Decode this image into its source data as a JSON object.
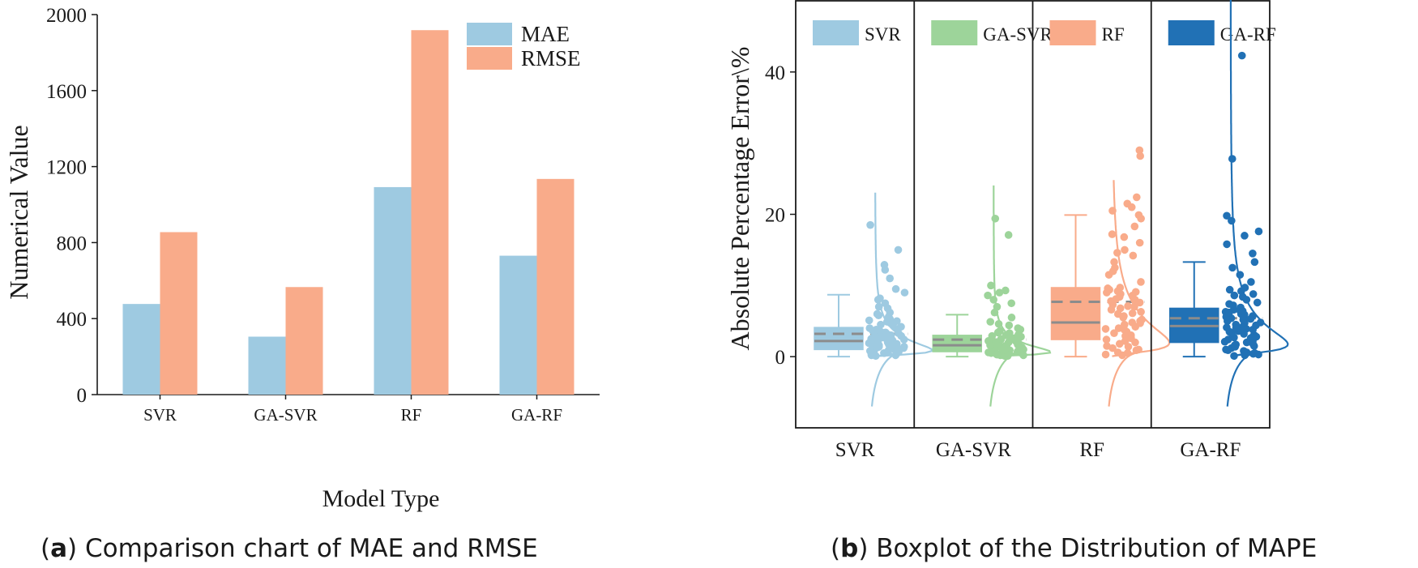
{
  "colors": {
    "mae": "#9ecae1",
    "rmse": "#f9ab8a",
    "svr": "#9ecae1",
    "ga_svr": "#9dd49a",
    "rf": "#f9ab8a",
    "ga_rf": "#2171b5",
    "axis": "#1a1a1a",
    "median": "#8c8c8c"
  },
  "chart_data": [
    {
      "id": "a",
      "type": "bar",
      "caption": {
        "label": "a",
        "text": "Comparison chart of MAE and RMSE"
      },
      "xlabel": "Model Type",
      "ylabel": "Numerical Value",
      "ylim": [
        0,
        2000
      ],
      "yticks": [
        0,
        400,
        800,
        1200,
        1600,
        2000
      ],
      "grid": false,
      "legend_position": "top-right",
      "categories": [
        "SVR",
        "GA-SVR",
        "RF",
        "GA-RF"
      ],
      "series": [
        {
          "name": "MAE",
          "values": [
            477,
            305,
            1092,
            731
          ]
        },
        {
          "name": "RMSE",
          "values": [
            855,
            566,
            1918,
            1135
          ]
        }
      ]
    },
    {
      "id": "b",
      "type": "box",
      "caption": {
        "label": "b",
        "text": "Boxplot of the Distribution of MAPE"
      },
      "ylabel": "Absolute Percentage Error\\%",
      "ylim": [
        -10,
        50
      ],
      "yticks": [
        0,
        20,
        40
      ],
      "grid": false,
      "legend_position": "top of each panel",
      "categories": [
        "SVR",
        "GA-SVR",
        "RF",
        "GA-RF"
      ],
      "boxes": [
        {
          "name": "SVR",
          "whisker_low": 0,
          "q1": 1.0,
          "median": 2.2,
          "q3": 4.1,
          "whisker_high": 8.7,
          "mean": 3.2,
          "outliers": [
            9.5,
            11.0,
            12.2,
            12.9,
            15.0,
            18.5
          ],
          "points": [
            0.2,
            0.4,
            0.5,
            0.7,
            0.9,
            1.1,
            1.2,
            1.4,
            1.6,
            1.8,
            1.9,
            2.1,
            2.3,
            2.4,
            2.6,
            2.8,
            3.0,
            3.2,
            3.4,
            3.6,
            3.9,
            4.2,
            4.5,
            4.9,
            5.3,
            5.8,
            6.2,
            6.8,
            7.5,
            8.2,
            9.0,
            9.5,
            11.0,
            12.2,
            12.9,
            15.0,
            18.5,
            0.3,
            0.6,
            1.0,
            1.5,
            2.0,
            2.5,
            3.1,
            3.7,
            4.4,
            5.1,
            6.0,
            0.8,
            1.3,
            1.7,
            2.2,
            2.9,
            3.5,
            4.0,
            0.1,
            0.5,
            1.0,
            1.4,
            2.0,
            2.7,
            3.3,
            4.7,
            5.6,
            0.2,
            0.9,
            1.6,
            2.4,
            3.0,
            0.4,
            1.2,
            2.6,
            3.8,
            5.0,
            7.0,
            8.0
          ]
        },
        {
          "name": "GA-SVR",
          "whisker_low": 0,
          "q1": 0.7,
          "median": 1.6,
          "q3": 3.0,
          "whisker_high": 5.9,
          "mean": 2.4,
          "outliers": [
            7.5,
            8.6,
            9.3,
            10.0,
            17.1,
            19.4
          ],
          "points": [
            0.1,
            0.2,
            0.3,
            0.4,
            0.5,
            0.6,
            0.7,
            0.8,
            0.9,
            1.0,
            1.1,
            1.2,
            1.3,
            1.4,
            1.5,
            1.6,
            1.7,
            1.8,
            1.9,
            2.0,
            2.2,
            2.4,
            2.6,
            2.8,
            3.0,
            3.3,
            3.6,
            4.0,
            4.4,
            4.9,
            5.5,
            6.2,
            7.0,
            7.5,
            8.6,
            9.3,
            10.0,
            17.1,
            19.4,
            0.2,
            0.5,
            0.8,
            1.1,
            1.4,
            1.7,
            2.1,
            2.5,
            3.1,
            3.8,
            0.3,
            0.6,
            0.9,
            1.3,
            1.8,
            2.3,
            2.9,
            0.1,
            0.4,
            1.0,
            1.5,
            2.0,
            2.7,
            3.4,
            4.6,
            0.7,
            1.2,
            1.6,
            2.2,
            9.0,
            8.0
          ]
        },
        {
          "name": "RF",
          "whisker_low": 0,
          "q1": 2.4,
          "median": 4.8,
          "q3": 9.7,
          "whisker_high": 19.9,
          "mean": 7.7,
          "outliers": [],
          "points": [
            0.2,
            0.6,
            1.0,
            1.5,
            2.0,
            2.4,
            2.9,
            3.3,
            3.8,
            4.2,
            4.8,
            5.2,
            5.7,
            6.1,
            6.6,
            7.1,
            7.6,
            8.1,
            8.6,
            9.0,
            9.4,
            9.7,
            10.5,
            11.5,
            12.5,
            13.3,
            14.2,
            15.0,
            16.0,
            17.2,
            18.3,
            19.4,
            20.5,
            21.5,
            22.4,
            28.2,
            29.0,
            0.5,
            1.2,
            2.2,
            3.0,
            4.0,
            5.0,
            6.0,
            7.0,
            8.0,
            9.2,
            0.3,
            1.8,
            3.5,
            5.5,
            7.3,
            8.8,
            2.7,
            4.5,
            6.3,
            8.4,
            9.6,
            1.4,
            3.9,
            6.8,
            9.1,
            12.0,
            14.6,
            16.8,
            19.9,
            21.0,
            0.9,
            2.6,
            4.7,
            7.8
          ]
        },
        {
          "name": "GA-RF",
          "whisker_low": 0,
          "q1": 2.0,
          "median": 4.3,
          "q3": 6.8,
          "whisker_high": 13.3,
          "mean": 5.4,
          "outliers": [
            14.5,
            15.8,
            17.0,
            17.6,
            19.1,
            19.8,
            27.8,
            42.3
          ],
          "points": [
            0.1,
            0.3,
            0.6,
            0.9,
            1.2,
            1.5,
            1.8,
            2.1,
            2.4,
            2.7,
            3.0,
            3.3,
            3.6,
            3.9,
            4.2,
            4.5,
            4.8,
            5.1,
            5.4,
            5.7,
            6.0,
            6.3,
            6.6,
            6.9,
            7.2,
            7.6,
            8.0,
            8.4,
            8.8,
            9.2,
            9.7,
            10.5,
            11.5,
            12.5,
            13.3,
            14.5,
            15.8,
            17.0,
            17.6,
            19.1,
            19.8,
            27.8,
            42.3,
            0.2,
            0.8,
            1.4,
            2.0,
            2.6,
            3.2,
            3.8,
            4.4,
            5.0,
            5.6,
            6.2,
            0.4,
            1.0,
            1.7,
            2.3,
            2.9,
            3.5,
            4.1,
            4.7,
            5.3,
            5.9,
            6.5,
            7.4,
            8.6,
            9.4,
            0.5,
            1.6,
            2.8,
            4.0,
            5.2,
            6.4
          ]
        }
      ]
    }
  ]
}
